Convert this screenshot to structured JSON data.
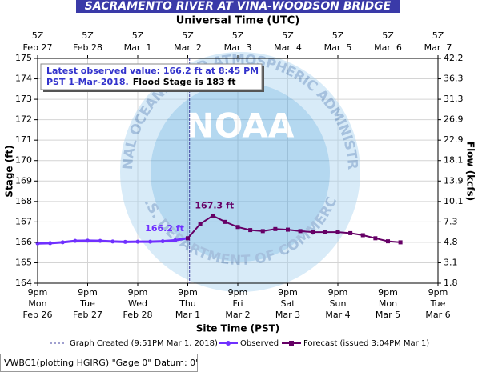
{
  "chart_data": {
    "type": "line",
    "title": "SACRAMENTO RIVER AT VINA-WOODSON BRIDGE",
    "x2label": "Universal Time (UTC)",
    "xlabel": "Site Time (PST)",
    "ylabel": "Stage (ft)",
    "y2label": "Flow (kcfs)",
    "xlim": [
      "2018-02-26T21:00",
      "2018-03-06T21:00"
    ],
    "xticks": [
      {
        "value": "2018-02-26T21:00",
        "label": [
          "9pm",
          "Mon",
          "Feb 26"
        ]
      },
      {
        "value": "2018-02-27T21:00",
        "label": [
          "9pm",
          "Tue",
          "Feb 27"
        ]
      },
      {
        "value": "2018-02-28T21:00",
        "label": [
          "9pm",
          "Wed",
          "Feb 28"
        ]
      },
      {
        "value": "2018-03-01T21:00",
        "label": [
          "9pm",
          "Thu",
          "Mar 1"
        ]
      },
      {
        "value": "2018-03-02T21:00",
        "label": [
          "9pm",
          "Fri",
          "Mar 2"
        ]
      },
      {
        "value": "2018-03-03T21:00",
        "label": [
          "9pm",
          "Sat",
          "Mar 3"
        ]
      },
      {
        "value": "2018-03-04T21:00",
        "label": [
          "9pm",
          "Sun",
          "Mar 4"
        ]
      },
      {
        "value": "2018-03-05T21:00",
        "label": [
          "9pm",
          "Mon",
          "Mar 5"
        ]
      },
      {
        "value": "2018-03-06T21:00",
        "label": [
          "9pm",
          "Tue",
          "Mar 6"
        ]
      }
    ],
    "x2ticks": [
      {
        "value": "2018-02-26T21:00",
        "label": [
          "5Z",
          "Feb 27"
        ]
      },
      {
        "value": "2018-02-27T21:00",
        "label": [
          "5Z",
          "Feb 28"
        ]
      },
      {
        "value": "2018-02-28T21:00",
        "label": [
          "5Z",
          "Mar  1"
        ]
      },
      {
        "value": "2018-03-01T21:00",
        "label": [
          "5Z",
          "Mar  2"
        ]
      },
      {
        "value": "2018-03-02T21:00",
        "label": [
          "5Z",
          "Mar  3"
        ]
      },
      {
        "value": "2018-03-03T21:00",
        "label": [
          "5Z",
          "Mar  4"
        ]
      },
      {
        "value": "2018-03-04T21:00",
        "label": [
          "5Z",
          "Mar  5"
        ]
      },
      {
        "value": "2018-03-05T21:00",
        "label": [
          "5Z",
          "Mar  6"
        ]
      },
      {
        "value": "2018-03-06T21:00",
        "label": [
          "5Z",
          "Mar  7"
        ]
      }
    ],
    "ylim": [
      164,
      175
    ],
    "yticks": [
      164,
      165,
      166,
      167,
      168,
      169,
      170,
      171,
      172,
      173,
      174,
      175
    ],
    "y2ticks": [
      1.8,
      3.1,
      4.8,
      7.3,
      10.1,
      13.9,
      18.1,
      22.9,
      26.9,
      31.3,
      36.3,
      42.2
    ],
    "grid": true,
    "series": [
      {
        "name": "Observed",
        "color": "#7030ff",
        "marker": "circle",
        "x": [
          "2018-02-26T21:00",
          "2018-02-27T03:00",
          "2018-02-27T09:00",
          "2018-02-27T15:00",
          "2018-02-27T21:00",
          "2018-02-28T03:00",
          "2018-02-28T09:00",
          "2018-02-28T15:00",
          "2018-02-28T21:00",
          "2018-03-01T03:00",
          "2018-03-01T09:00",
          "2018-03-01T15:00",
          "2018-03-01T20:45"
        ],
        "values": [
          165.95,
          165.96,
          166.0,
          166.07,
          166.08,
          166.07,
          166.04,
          166.02,
          166.03,
          166.03,
          166.05,
          166.1,
          166.2
        ],
        "value_labels": [
          null,
          null,
          null,
          null,
          null,
          null,
          null,
          null,
          null,
          null,
          null,
          null,
          "166.2 ft"
        ]
      },
      {
        "name": "Forecast (issued 3:04PM Mar 1)",
        "color": "#660066",
        "marker": "square",
        "x": [
          "2018-03-01T21:00",
          "2018-03-02T03:00",
          "2018-03-02T09:00",
          "2018-03-02T15:00",
          "2018-03-02T21:00",
          "2018-03-03T03:00",
          "2018-03-03T09:00",
          "2018-03-03T15:00",
          "2018-03-03T21:00",
          "2018-03-04T03:00",
          "2018-03-04T09:00",
          "2018-03-04T15:00",
          "2018-03-04T21:00",
          "2018-03-05T03:00",
          "2018-03-05T09:00",
          "2018-03-05T15:00",
          "2018-03-05T21:00",
          "2018-03-06T03:00"
        ],
        "values": [
          166.2,
          166.9,
          167.3,
          167.0,
          166.75,
          166.6,
          166.55,
          166.65,
          166.62,
          166.55,
          166.5,
          166.5,
          166.5,
          166.45,
          166.35,
          166.2,
          166.05,
          166.0
        ],
        "value_labels": [
          null,
          null,
          "167.3 ft",
          null,
          null,
          null,
          null,
          null,
          null,
          null,
          null,
          null,
          null,
          null,
          null,
          null,
          null,
          null
        ]
      }
    ],
    "graph_created": {
      "x": "2018-03-01T21:51",
      "label": "Graph Created (9:51PM Mar 1, 2018)"
    },
    "annotation": {
      "observed": [
        "Latest observed value: 166.2 ft at 8:45 PM",
        "PST 1-Mar-2018."
      ],
      "flood": "Flood Stage is 183 ft"
    },
    "watermark": {
      "center": "NOAA",
      "top": "NATIONAL OCEANIC AND ATMOSPHERIC ADMINISTRATION",
      "bottom": "U.S. DEPARTMENT OF COMMERCE"
    },
    "footer": "VWBC1(plotting HGIRG) \"Gage 0\" Datum: 0'"
  }
}
